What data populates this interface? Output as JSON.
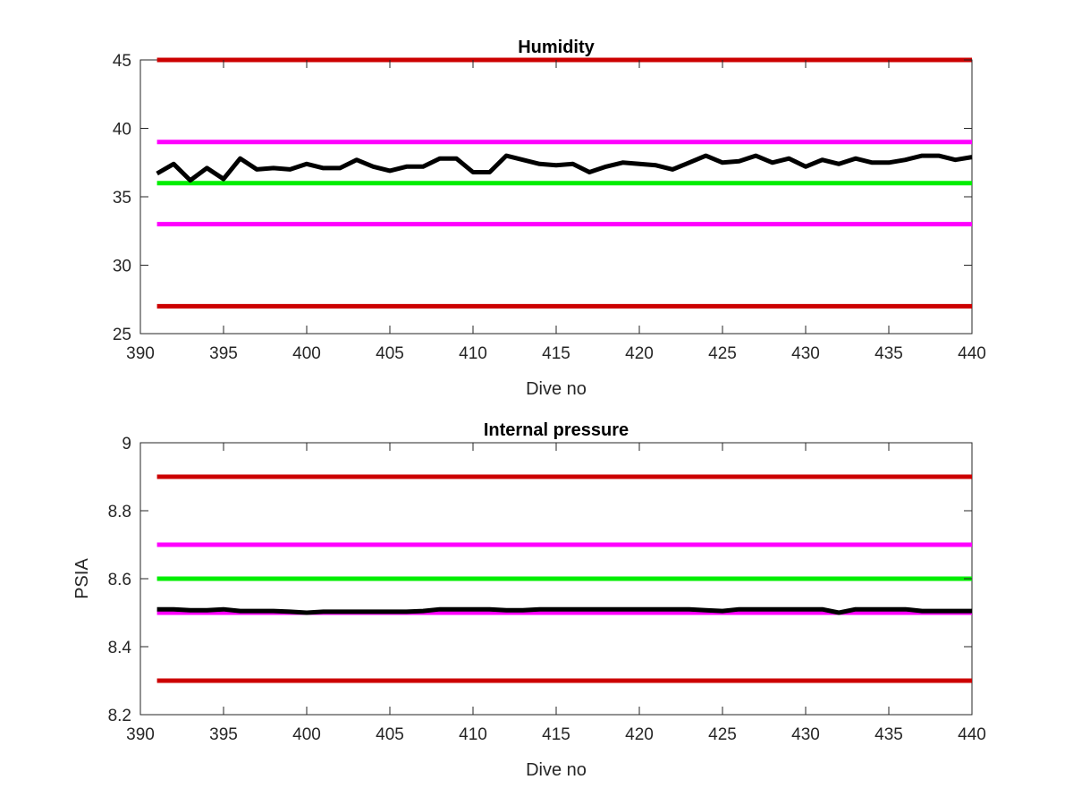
{
  "chart_data": [
    {
      "type": "line",
      "title": "Humidity",
      "xlabel": "Dive no",
      "ylabel": "",
      "xlim": [
        390,
        440
      ],
      "ylim": [
        25,
        45
      ],
      "xticks": [
        "390",
        "395",
        "400",
        "405",
        "410",
        "415",
        "420",
        "425",
        "430",
        "435",
        "440"
      ],
      "yticks": [
        "25",
        "30",
        "35",
        "40",
        "45"
      ],
      "grid": false,
      "threshold_lines": [
        {
          "y": 45,
          "color": "#cc0000"
        },
        {
          "y": 39,
          "color": "#ff00ff"
        },
        {
          "y": 36,
          "color": "#00ee00"
        },
        {
          "y": 33,
          "color": "#ff00ff"
        },
        {
          "y": 27,
          "color": "#cc0000"
        }
      ],
      "series": [
        {
          "color": "#000000",
          "x": [
            391,
            392,
            393,
            394,
            395,
            396,
            397,
            398,
            399,
            400,
            401,
            402,
            403,
            404,
            405,
            406,
            407,
            408,
            409,
            410,
            411,
            412,
            413,
            414,
            415,
            416,
            417,
            418,
            419,
            420,
            421,
            422,
            423,
            424,
            425,
            426,
            427,
            428,
            429,
            430,
            431,
            432,
            433,
            434,
            435,
            436,
            437,
            438,
            439,
            440
          ],
          "values": [
            36.7,
            37.4,
            36.2,
            37.1,
            36.3,
            37.8,
            37.0,
            37.1,
            37.0,
            37.4,
            37.1,
            37.1,
            37.7,
            37.2,
            36.9,
            37.2,
            37.2,
            37.8,
            37.8,
            36.8,
            36.8,
            38.0,
            37.7,
            37.4,
            37.3,
            37.4,
            36.8,
            37.2,
            37.5,
            37.4,
            37.3,
            37.0,
            37.5,
            38.0,
            37.5,
            37.6,
            38.0,
            37.5,
            37.8,
            37.2,
            37.7,
            37.4,
            37.8,
            37.5,
            37.5,
            37.7,
            38.0,
            38.0,
            37.7,
            37.9
          ]
        }
      ]
    },
    {
      "type": "line",
      "title": "Internal pressure",
      "xlabel": "Dive no",
      "ylabel": "PSIA",
      "xlim": [
        390,
        440
      ],
      "ylim": [
        8.2,
        9.0
      ],
      "xticks": [
        "390",
        "395",
        "400",
        "405",
        "410",
        "415",
        "420",
        "425",
        "430",
        "435",
        "440"
      ],
      "yticks": [
        "8.2",
        "8.4",
        "8.6",
        "8.8",
        "9"
      ],
      "grid": false,
      "threshold_lines": [
        {
          "y": 8.9,
          "color": "#cc0000"
        },
        {
          "y": 8.7,
          "color": "#ff00ff"
        },
        {
          "y": 8.6,
          "color": "#00ee00"
        },
        {
          "y": 8.5,
          "color": "#ff00ff"
        },
        {
          "y": 8.3,
          "color": "#cc0000"
        }
      ],
      "series": [
        {
          "color": "#000000",
          "x": [
            391,
            392,
            393,
            394,
            395,
            396,
            397,
            398,
            399,
            400,
            401,
            402,
            403,
            404,
            405,
            406,
            407,
            408,
            409,
            410,
            411,
            412,
            413,
            414,
            415,
            416,
            417,
            418,
            419,
            420,
            421,
            422,
            423,
            424,
            425,
            426,
            427,
            428,
            429,
            430,
            431,
            432,
            433,
            434,
            435,
            436,
            437,
            438,
            439,
            440
          ],
          "values": [
            8.51,
            8.51,
            8.507,
            8.507,
            8.51,
            8.505,
            8.505,
            8.505,
            8.503,
            8.5,
            8.503,
            8.503,
            8.503,
            8.503,
            8.503,
            8.503,
            8.505,
            8.51,
            8.51,
            8.51,
            8.51,
            8.507,
            8.507,
            8.51,
            8.51,
            8.51,
            8.51,
            8.51,
            8.51,
            8.51,
            8.51,
            8.51,
            8.51,
            8.507,
            8.505,
            8.51,
            8.51,
            8.51,
            8.51,
            8.51,
            8.51,
            8.5,
            8.51,
            8.51,
            8.51,
            8.51,
            8.505,
            8.505,
            8.505,
            8.505
          ]
        }
      ]
    }
  ]
}
